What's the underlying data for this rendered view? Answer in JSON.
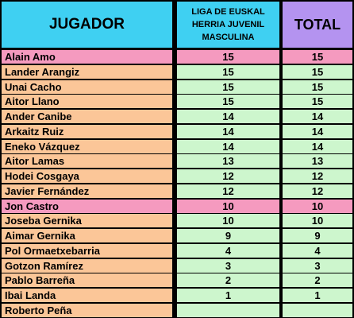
{
  "header": {
    "player": "JUGADOR",
    "liga_line1": "LIGA DE EUSKAL",
    "liga_line2": "HERRIA JUVENIL",
    "liga_line3": "MASCULINA",
    "total": "TOTAL"
  },
  "colors": {
    "header_cyan": "#3fd0f2",
    "header_purple": "#b493f0",
    "name_cell": "#fbc698",
    "score_cell": "#cdf6cd",
    "highlight": "#f59abf"
  },
  "rows": [
    {
      "name": "Alain Amo",
      "liga": "15",
      "total": "15",
      "highlight": true
    },
    {
      "name": "Lander Arangiz",
      "liga": "15",
      "total": "15",
      "highlight": false
    },
    {
      "name": "Unai Cacho",
      "liga": "15",
      "total": "15",
      "highlight": false
    },
    {
      "name": "Aitor Llano",
      "liga": "15",
      "total": "15",
      "highlight": false
    },
    {
      "name": "Ander Canibe",
      "liga": "14",
      "total": "14",
      "highlight": false
    },
    {
      "name": "Arkaitz Ruiz",
      "liga": "14",
      "total": "14",
      "highlight": false
    },
    {
      "name": "Eneko Vázquez",
      "liga": "14",
      "total": "14",
      "highlight": false
    },
    {
      "name": "Aitor Lamas",
      "liga": "13",
      "total": "13",
      "highlight": false
    },
    {
      "name": "Hodei Cosgaya",
      "liga": "12",
      "total": "12",
      "highlight": false
    },
    {
      "name": "Javier Fernández",
      "liga": "12",
      "total": "12",
      "highlight": false
    },
    {
      "name": "Jon Castro",
      "liga": "10",
      "total": "10",
      "highlight": true
    },
    {
      "name": "Joseba Gernika",
      "liga": "10",
      "total": "10",
      "highlight": false
    },
    {
      "name": "Aimar Gernika",
      "liga": "9",
      "total": "9",
      "highlight": false
    },
    {
      "name": "Pol Ormaetxebarria",
      "liga": "4",
      "total": "4",
      "highlight": false
    },
    {
      "name": "Gotzon Ramírez",
      "liga": "3",
      "total": "3",
      "highlight": false
    },
    {
      "name": "Pablo Barreña",
      "liga": "2",
      "total": "2",
      "highlight": false
    },
    {
      "name": "Ibai Landa",
      "liga": "1",
      "total": "1",
      "highlight": false
    },
    {
      "name": "Roberto Peña",
      "liga": "",
      "total": "",
      "highlight": false
    }
  ]
}
